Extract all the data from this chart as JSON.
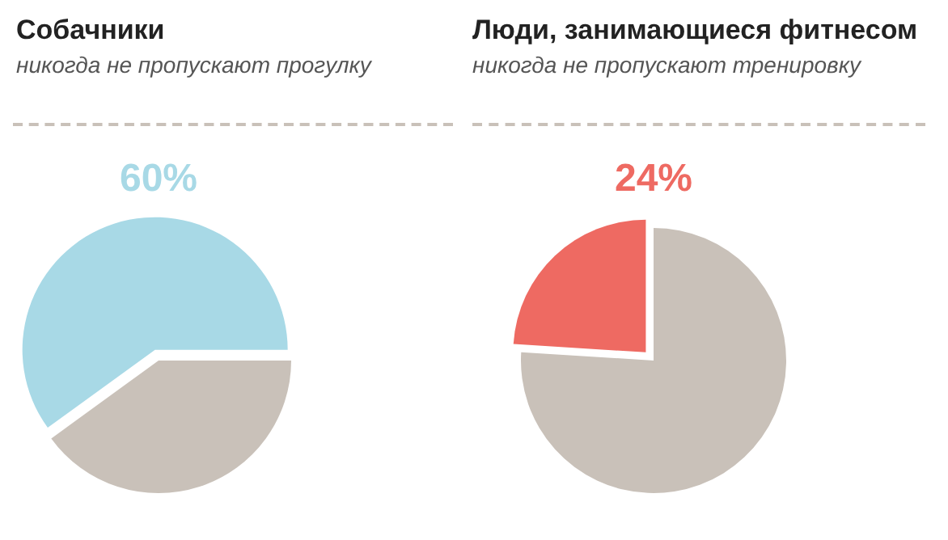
{
  "chart_data": [
    {
      "type": "pie",
      "title": "Собачники",
      "subtitle": "никогда не пропускают прогулку",
      "categories": [
        null,
        null
      ],
      "values": [
        60,
        40
      ],
      "colors": [
        "#a8d9e6",
        "#c9c1b9"
      ],
      "value_labels": [
        "60%",
        null
      ]
    },
    {
      "type": "pie",
      "title": "Люди, занимающиеся фитнесом",
      "subtitle": "никогда не пропускают тренировку",
      "categories": [
        null,
        null
      ],
      "values": [
        24,
        76
      ],
      "colors": [
        "#ee6a62",
        "#c9c1b9"
      ],
      "value_labels": [
        "24%",
        null
      ]
    }
  ]
}
